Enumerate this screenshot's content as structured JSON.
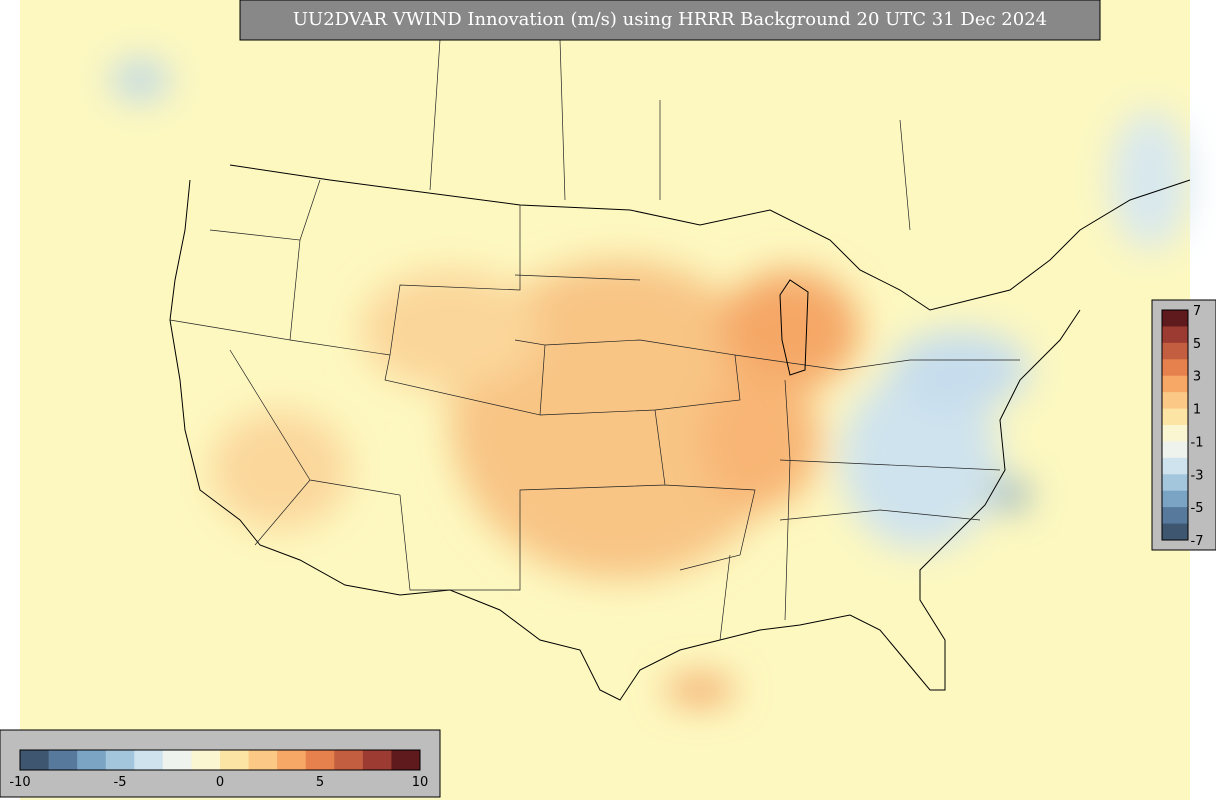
{
  "title": "UU2DVAR VWIND Innovation (m/s) using HRRR Background 20 UTC 31 Dec 2024",
  "colorbar_bottom": {
    "ticks": [
      -10,
      -5,
      0,
      5,
      10
    ]
  },
  "colorbar_right": {
    "ticks": [
      7,
      5,
      3,
      1,
      -1,
      -3,
      -5,
      -7
    ]
  },
  "colors": [
    "#3f5670",
    "#56799c",
    "#7aa3c4",
    "#a3c6dc",
    "#cfe3ee",
    "#eef3ee",
    "#fbf6d2",
    "#fce4a4",
    "#fbc985",
    "#f7a866",
    "#e6814e",
    "#c45e41",
    "#9c3b31",
    "#5e1a1c"
  ]
}
